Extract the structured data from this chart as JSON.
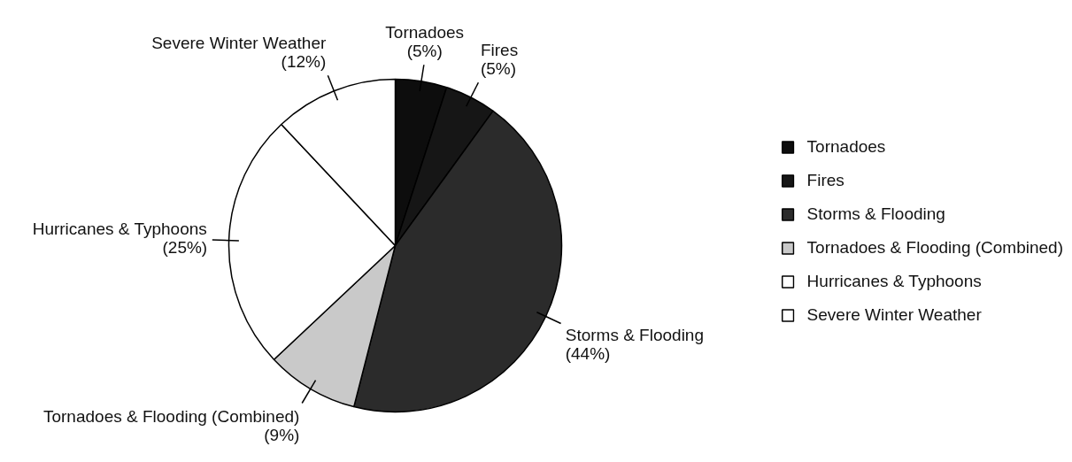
{
  "chart_data": {
    "type": "pie",
    "categories": [
      "Tornadoes",
      "Fires",
      "Storms & Flooding",
      "Tornadoes & Flooding (Combined)",
      "Hurricanes & Typhoons",
      "Severe Winter Weather"
    ],
    "values": [
      5,
      5,
      44,
      9,
      25,
      12
    ],
    "colors": [
      "#0d0d0d",
      "#161616",
      "#2b2b2b",
      "#c9c9c9",
      "#ffffff",
      "#ffffff"
    ],
    "value_labels": [
      "(5%)",
      "(5%)",
      "(44%)",
      "(9%)",
      "(25%)",
      "(12%)"
    ],
    "legend": "right"
  }
}
